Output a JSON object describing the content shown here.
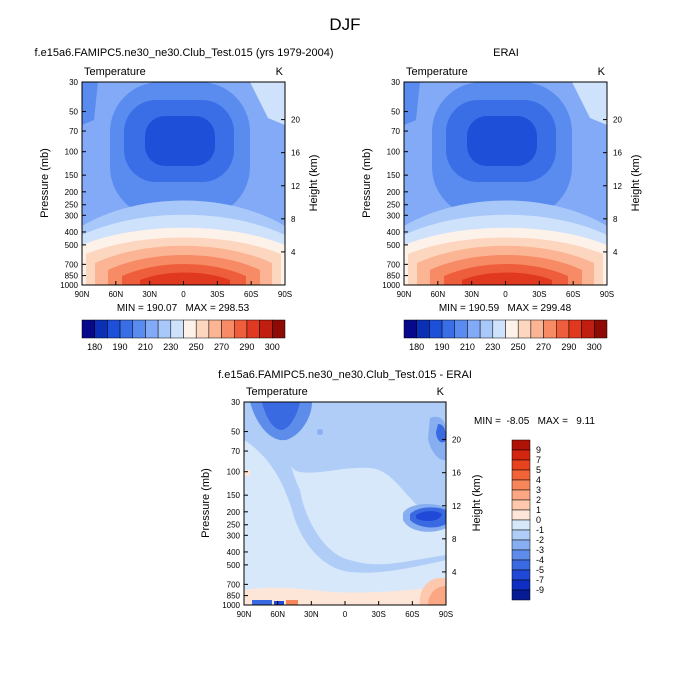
{
  "figure": {
    "title": "DJF"
  },
  "chart_data": [
    {
      "type": "heatmap",
      "panel_title": "f.e15a6.FAMIPC5.ne30_ne30.Club_Test.015 (yrs 1979-2004)",
      "variable_label": "Temperature",
      "units_label": "K",
      "ylabel": "Pressure (mb)",
      "ylabel_right": "Height (km)",
      "x_ticks": [
        "90N",
        "60N",
        "30N",
        "0",
        "30S",
        "60S",
        "90S"
      ],
      "y_ticks": [
        "30",
        "50",
        "70",
        "100",
        "150",
        "200",
        "250",
        "300",
        "400",
        "500",
        "700",
        "850",
        "1000"
      ],
      "y_ticks_right": [
        "20",
        "16",
        "12",
        "8",
        "4"
      ],
      "stats_text": "MIN = 190.07   MAX = 298.53",
      "stats": {
        "min": 190.07,
        "max": 298.53
      },
      "colorbar": {
        "labels": [
          "180",
          "190",
          "210",
          "230",
          "250",
          "270",
          "290",
          "300"
        ],
        "colors": [
          "#08088a",
          "#0b2fb5",
          "#1d4fd8",
          "#3a6ee6",
          "#5a8cf0",
          "#82aaf6",
          "#a9c8fa",
          "#cfe2fc",
          "#fdf2ea",
          "#fdd6c0",
          "#fbb494",
          "#f68b65",
          "#ef5e3c",
          "#e0391f",
          "#c01e10",
          "#8e0a05"
        ]
      }
    },
    {
      "type": "heatmap",
      "panel_title": "ERAI",
      "variable_label": "Temperature",
      "units_label": "K",
      "ylabel": "Pressure (mb)",
      "ylabel_right": "Height (km)",
      "x_ticks": [
        "90N",
        "60N",
        "30N",
        "0",
        "30S",
        "60S",
        "90S"
      ],
      "y_ticks": [
        "30",
        "50",
        "70",
        "100",
        "150",
        "200",
        "250",
        "300",
        "400",
        "500",
        "700",
        "850",
        "1000"
      ],
      "y_ticks_right": [
        "20",
        "16",
        "12",
        "8",
        "4"
      ],
      "stats_text": "MIN = 190.59   MAX = 299.48",
      "stats": {
        "min": 190.59,
        "max": 299.48
      },
      "colorbar": {
        "labels": [
          "180",
          "190",
          "210",
          "230",
          "250",
          "270",
          "290",
          "300"
        ],
        "colors": [
          "#08088a",
          "#0b2fb5",
          "#1d4fd8",
          "#3a6ee6",
          "#5a8cf0",
          "#82aaf6",
          "#a9c8fa",
          "#cfe2fc",
          "#fdf2ea",
          "#fdd6c0",
          "#fbb494",
          "#f68b65",
          "#ef5e3c",
          "#e0391f",
          "#c01e10",
          "#8e0a05"
        ]
      }
    },
    {
      "type": "heatmap",
      "panel_title": "f.e15a6.FAMIPC5.ne30_ne30.Club_Test.015 - ERAI",
      "variable_label": "Temperature",
      "units_label": "K",
      "ylabel": "Pressure (mb)",
      "ylabel_right": "Height (km)",
      "x_ticks": [
        "90N",
        "60N",
        "30N",
        "0",
        "30S",
        "60S",
        "90S"
      ],
      "y_ticks": [
        "30",
        "50",
        "70",
        "100",
        "150",
        "200",
        "250",
        "300",
        "400",
        "500",
        "700",
        "850",
        "1000"
      ],
      "y_ticks_right": [
        "20",
        "16",
        "12",
        "8",
        "4"
      ],
      "stats_text": "MIN =  -8.05   MAX =   9.11",
      "stats": {
        "min": -8.05,
        "max": 9.11
      },
      "colorbar": {
        "labels": [
          "9",
          "7",
          "5",
          "4",
          "3",
          "2",
          "1",
          "0",
          "-1",
          "-2",
          "-3",
          "-4",
          "-5",
          "-7",
          "-9"
        ],
        "colors": [
          "#b01208",
          "#d3250f",
          "#e8431f",
          "#f26437",
          "#f7865a",
          "#fba783",
          "#fdc8ae",
          "#fde6d8",
          "#d8e8fb",
          "#b0cdf7",
          "#86aef1",
          "#5d8cea",
          "#3a6ae2",
          "#1f49d6",
          "#0f2ec2",
          "#071b94"
        ]
      }
    }
  ]
}
